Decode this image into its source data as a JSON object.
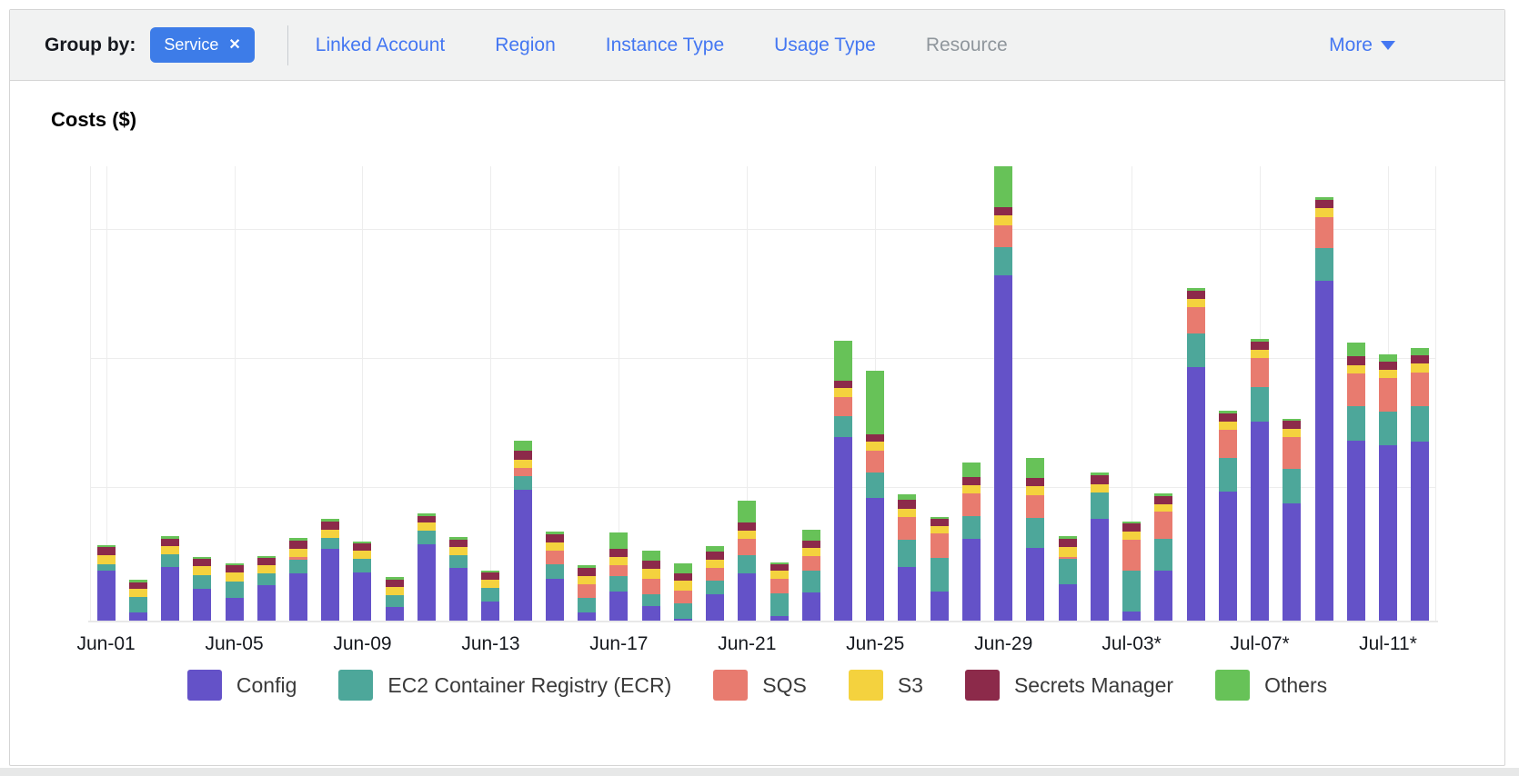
{
  "toolbar": {
    "group_by_label": "Group by:",
    "active_filter": {
      "label": "Service",
      "remove_icon": "✕"
    },
    "links": [
      {
        "label": "Linked Account",
        "enabled": true
      },
      {
        "label": "Region",
        "enabled": true
      },
      {
        "label": "Instance Type",
        "enabled": true
      },
      {
        "label": "Usage Type",
        "enabled": true
      },
      {
        "label": "Resource",
        "enabled": false
      }
    ],
    "more_label": "More"
  },
  "chart": {
    "title": "Costs ($)"
  },
  "chart_data": {
    "type": "bar",
    "stacked": true,
    "title": "Costs ($)",
    "xlabel": "",
    "ylabel": "Costs ($)",
    "y_axis_tick_labels_visible": false,
    "ylim": [
      0,
      500
    ],
    "value_unit": "relative height units (chart shows no y-axis tick labels)",
    "grid": true,
    "legend_position": "bottom",
    "x_tick_every": 4,
    "x_tick_labels": [
      "Jun-01",
      "Jun-05",
      "Jun-09",
      "Jun-13",
      "Jun-17",
      "Jun-21",
      "Jun-25",
      "Jun-29",
      "Jul-03*",
      "Jul-07*",
      "Jul-11*"
    ],
    "categories": [
      "Jun-01",
      "Jun-02",
      "Jun-03",
      "Jun-04",
      "Jun-05",
      "Jun-06",
      "Jun-07",
      "Jun-08",
      "Jun-09",
      "Jun-10",
      "Jun-11",
      "Jun-12",
      "Jun-13",
      "Jun-14",
      "Jun-15",
      "Jun-16",
      "Jun-17",
      "Jun-18",
      "Jun-19",
      "Jun-20",
      "Jun-21",
      "Jun-22",
      "Jun-23",
      "Jun-24",
      "Jun-25",
      "Jun-26",
      "Jun-27",
      "Jun-28",
      "Jun-29",
      "Jun-30",
      "Jul-01",
      "Jul-02",
      "Jul-03",
      "Jul-04",
      "Jul-05",
      "Jul-06",
      "Jul-07",
      "Jul-08",
      "Jul-09",
      "Jul-10",
      "Jul-11",
      "Jul-12"
    ],
    "series": [
      {
        "name": "Config",
        "color": "#6452c8",
        "values": [
          55,
          9,
          59,
          35,
          25,
          39,
          52,
          79,
          53,
          15,
          84,
          58,
          21,
          144,
          46,
          9,
          32,
          16,
          2,
          29,
          52,
          5,
          31,
          202,
          135,
          59,
          32,
          90,
          380,
          80,
          40,
          112,
          10,
          55,
          279,
          142,
          219,
          129,
          374,
          198,
          193,
          197
        ]
      },
      {
        "name": "EC2 Container Registry (ECR)",
        "color": "#4da79a",
        "values": [
          7,
          17,
          14,
          15,
          18,
          13,
          15,
          12,
          15,
          13,
          15,
          14,
          15,
          15,
          16,
          16,
          17,
          13,
          17,
          15,
          20,
          25,
          24,
          23,
          28,
          30,
          37,
          25,
          31,
          33,
          28,
          29,
          45,
          35,
          37,
          37,
          38,
          38,
          36,
          38,
          37,
          39
        ]
      },
      {
        "name": "SQS",
        "color": "#e87b6f",
        "values": [
          0,
          0,
          0,
          0,
          0,
          0,
          3,
          0,
          0,
          0,
          0,
          0,
          0,
          9,
          15,
          15,
          12,
          17,
          14,
          14,
          18,
          16,
          16,
          21,
          24,
          25,
          27,
          25,
          24,
          25,
          2,
          0,
          34,
          30,
          29,
          31,
          32,
          35,
          34,
          36,
          37,
          37
        ]
      },
      {
        "name": "S3",
        "color": "#f4d23e",
        "values": [
          10,
          9,
          9,
          10,
          10,
          9,
          9,
          9,
          9,
          9,
          9,
          9,
          9,
          9,
          9,
          9,
          9,
          11,
          11,
          9,
          9,
          9,
          9,
          10,
          10,
          9,
          8,
          9,
          11,
          10,
          11,
          9,
          9,
          8,
          9,
          9,
          9,
          9,
          10,
          9,
          9,
          10
        ]
      },
      {
        "name": "Secrets Manager",
        "color": "#8c2a4a",
        "values": [
          9,
          7,
          8,
          8,
          8,
          8,
          9,
          9,
          8,
          8,
          7,
          8,
          8,
          10,
          9,
          9,
          9,
          9,
          8,
          9,
          9,
          7,
          8,
          8,
          8,
          10,
          8,
          9,
          9,
          9,
          9,
          10,
          9,
          9,
          9,
          9,
          9,
          9,
          9,
          10,
          9,
          9
        ]
      },
      {
        "name": "Others",
        "color": "#67c258",
        "values": [
          2,
          3,
          3,
          2,
          2,
          2,
          3,
          3,
          2,
          3,
          3,
          3,
          2,
          11,
          3,
          3,
          18,
          11,
          11,
          6,
          24,
          2,
          12,
          44,
          70,
          6,
          2,
          16,
          45,
          22,
          3,
          3,
          2,
          3,
          3,
          3,
          3,
          2,
          3,
          15,
          8,
          8
        ]
      }
    ]
  },
  "colors": {
    "accent_blue": "#3d7ce8",
    "link_blue": "#4477f2",
    "disabled_gray": "#8f969c",
    "toolbar_bg": "#f1f2f2",
    "card_border": "#d5d5d5",
    "gridline": "#ededed"
  }
}
